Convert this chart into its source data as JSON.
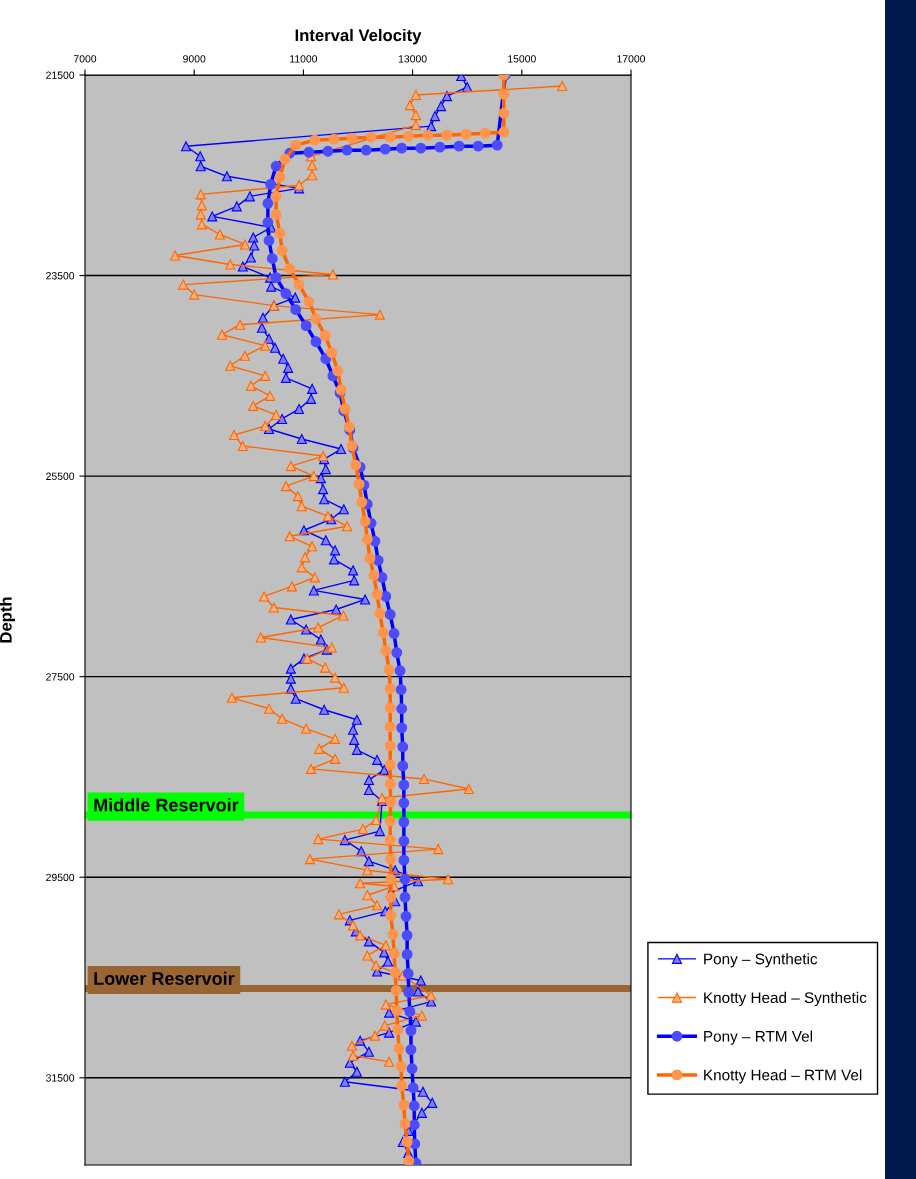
{
  "chart_data": {
    "type": "line",
    "xlabel": "Interval Velocity",
    "ylabel": "Depth",
    "xlim": [
      7000,
      17000
    ],
    "xticks": [
      7000,
      9000,
      11000,
      13000,
      15000,
      17000
    ],
    "ylim": [
      32370,
      21500
    ],
    "yticks": [
      21500,
      23500,
      25500,
      27500,
      29500,
      31500
    ],
    "grid": "y",
    "legend": "bottom right",
    "line_style": "solid",
    "ref_lines": [
      {
        "axis": "y",
        "value": 28880,
        "label": "Middle Reservoir",
        "color": "#00ff00"
      },
      {
        "axis": "y",
        "value": 30610,
        "label": "Lower Reservoir",
        "color": "#996633"
      }
    ],
    "series": [
      {
        "name": "Pony – Synthetic",
        "color": "#0000ff",
        "marker": "triangle",
        "x": [
          13890,
          14000,
          13630,
          13520,
          13410,
          13340,
          8850,
          9110,
          9120,
          9600,
          10920,
          10020,
          9780,
          9330,
          10410,
          10080,
          10100,
          10040,
          9890,
          10390,
          10410,
          10850,
          10460,
          10260,
          10240,
          10370,
          10480,
          10630,
          10720,
          10680,
          11160,
          11140,
          10920,
          10610,
          10370,
          10970,
          11690,
          11380,
          11410,
          11320,
          11360,
          11380,
          11740,
          11510,
          11010,
          11410,
          11580,
          11560,
          11910,
          11930,
          11190,
          12130,
          11600,
          10770,
          11050,
          11320,
          11430,
          11010,
          10770,
          10770,
          10770,
          10860,
          11380,
          11980,
          11910,
          11930,
          11980,
          12350,
          12480,
          12200,
          12200,
          12440,
          12400,
          11760,
          12060,
          12200,
          12680,
          13100,
          12600,
          12680,
          12500,
          11850,
          11960,
          12200,
          12480,
          12550,
          12350,
          13150,
          13100,
          13340,
          12570,
          13060,
          12570,
          12040,
          12200,
          11850,
          11980,
          11760,
          13190,
          13360,
          13170,
          12930,
          12820,
          12920
        ],
        "values": [
          21510,
          21620,
          21710,
          21810,
          21910,
          22010,
          22210,
          22310,
          22410,
          22510,
          22630,
          22710,
          22810,
          22910,
          23020,
          23120,
          23200,
          23320,
          23410,
          23520,
          23610,
          23720,
          23800,
          23920,
          24020,
          24130,
          24220,
          24330,
          24420,
          24520,
          24630,
          24730,
          24830,
          24930,
          25030,
          25130,
          25230,
          25330,
          25430,
          25520,
          25630,
          25730,
          25830,
          25930,
          26040,
          26140,
          26240,
          26330,
          26440,
          26540,
          26640,
          26730,
          26830,
          26930,
          27030,
          27130,
          27230,
          27320,
          27420,
          27520,
          27620,
          27720,
          27830,
          27930,
          28030,
          28130,
          28230,
          28330,
          28430,
          28530,
          28630,
          28740,
          29040,
          29130,
          29240,
          29340,
          29430,
          29540,
          29650,
          29740,
          29840,
          29930,
          30040,
          30140,
          30250,
          30340,
          30440,
          30530,
          30640,
          30740,
          30850,
          30940,
          31050,
          31130,
          31240,
          31350,
          31440,
          31540,
          31640,
          31750,
          31850,
          32030,
          32140,
          32250
        ]
      },
      {
        "name": "Knotty Head – Synthetic",
        "color": "#ff6600",
        "marker": "triangle",
        "x": [
          15740,
          13060,
          12950,
          13060,
          13060,
          11140,
          11160,
          11160,
          10920,
          9120,
          9140,
          9120,
          9140,
          9470,
          9930,
          8650,
          9660,
          11540,
          8800,
          9000,
          10460,
          12400,
          9840,
          9510,
          10300,
          9930,
          9660,
          10300,
          10040,
          10390,
          10080,
          10500,
          10300,
          9730,
          9890,
          11360,
          10770,
          11190,
          10680,
          10900,
          10970,
          11450,
          11800,
          10750,
          11160,
          11030,
          10970,
          11210,
          10790,
          10280,
          10460,
          11730,
          11270,
          10220,
          11520,
          11070,
          11400,
          11580,
          11740,
          9690,
          10370,
          10610,
          11050,
          11580,
          11290,
          11580,
          11140,
          13210,
          14030,
          12440,
          12330,
          12090,
          11270,
          13470,
          11120,
          12170,
          13650,
          12040,
          12660,
          12170,
          12350,
          11650,
          11910,
          12040,
          12510,
          12170,
          12330,
          12820,
          13340,
          12510,
          13170,
          12490,
          12310,
          11890,
          11910,
          12570
        ],
        "values": [
          21610,
          21700,
          21800,
          21900,
          22000,
          22310,
          22400,
          22500,
          22600,
          22690,
          22800,
          22890,
          22990,
          23090,
          23190,
          23300,
          23390,
          23490,
          23590,
          23690,
          23800,
          23890,
          23990,
          24090,
          24200,
          24300,
          24400,
          24500,
          24600,
          24700,
          24800,
          24890,
          25000,
          25090,
          25200,
          25300,
          25400,
          25500,
          25600,
          25700,
          25800,
          25900,
          26000,
          26100,
          26200,
          26310,
          26410,
          26510,
          26600,
          26700,
          26810,
          26890,
          27010,
          27110,
          27210,
          27320,
          27410,
          27510,
          27610,
          27710,
          27820,
          27920,
          28020,
          28120,
          28220,
          28320,
          28420,
          28520,
          28620,
          28710,
          28930,
          29020,
          29120,
          29220,
          29320,
          29430,
          29520,
          29560,
          29590,
          29680,
          29780,
          29870,
          29980,
          30080,
          30180,
          30280,
          30380,
          30480,
          30680,
          30770,
          30880,
          30980,
          31080,
          31180,
          31280,
          31340
        ]
      },
      {
        "name": "Pony – RTM Vel",
        "color": "#0000ff",
        "marker": "circle",
        "x": [
          14700,
          14550,
          14200,
          13850,
          13500,
          13150,
          12800,
          12500,
          12150,
          11800,
          11450,
          11100,
          10750,
          10500,
          10400,
          10350,
          10350,
          10370,
          10430,
          10500,
          10680,
          10860,
          11050,
          11230,
          11410,
          11540,
          11670,
          11740,
          11850,
          11910,
          12040,
          12110,
          12170,
          12240,
          12310,
          12370,
          12440,
          12510,
          12590,
          12660,
          12710,
          12770,
          12790,
          12800,
          12800,
          12820,
          12820,
          12840,
          12840,
          12840,
          12840,
          12840,
          12860,
          12860,
          12880,
          12900,
          12900,
          12920,
          12930,
          12950,
          12970,
          12970,
          12990,
          13010,
          13030,
          13030,
          13040,
          13060
        ],
        "values": [
          21500,
          22200,
          22210,
          22210,
          22220,
          22230,
          22230,
          22240,
          22250,
          22250,
          22260,
          22270,
          22280,
          22410,
          22590,
          22780,
          22970,
          23150,
          23330,
          23520,
          23680,
          23840,
          24000,
          24160,
          24330,
          24500,
          24670,
          24850,
          25040,
          25220,
          25410,
          25590,
          25780,
          25970,
          26150,
          26340,
          26510,
          26700,
          26880,
          27070,
          27260,
          27440,
          27630,
          27820,
          28010,
          28200,
          28390,
          28580,
          28760,
          28950,
          29140,
          29330,
          29520,
          29700,
          29890,
          30080,
          30270,
          30460,
          30650,
          30840,
          31030,
          31220,
          31410,
          31600,
          31780,
          31970,
          32160,
          32350
        ]
      },
      {
        "name": "Knotty Head – RTM Vel",
        "color": "#ff6600",
        "marker": "circle",
        "x": [
          14670,
          14670,
          14670,
          14670,
          14330,
          13980,
          13630,
          13280,
          12930,
          12590,
          12240,
          11890,
          11560,
          11210,
          10860,
          10660,
          10570,
          10500,
          10500,
          10570,
          10610,
          10750,
          10920,
          11100,
          11230,
          11400,
          11520,
          11630,
          11690,
          11760,
          11840,
          11890,
          11960,
          12020,
          12070,
          12130,
          12170,
          12220,
          12290,
          12350,
          12400,
          12460,
          12510,
          12570,
          12590,
          12590,
          12590,
          12590,
          12590,
          12590,
          12600,
          12590,
          12590,
          12600,
          12600,
          12600,
          12600,
          12640,
          12660,
          12680,
          12700,
          12710,
          12730,
          12750,
          12790,
          12800,
          12840,
          12860,
          12900,
          12930
        ],
        "values": [
          21500,
          21690,
          21880,
          22070,
          22080,
          22090,
          22100,
          22100,
          22110,
          22120,
          22120,
          22130,
          22140,
          22150,
          22200,
          22340,
          22520,
          22710,
          22890,
          23080,
          23250,
          23430,
          23590,
          23760,
          23930,
          24100,
          24270,
          24450,
          24640,
          24830,
          25010,
          25200,
          25390,
          25580,
          25760,
          25950,
          26130,
          26320,
          26490,
          26680,
          26870,
          27060,
          27240,
          27430,
          27620,
          27810,
          28000,
          28190,
          28380,
          28570,
          28750,
          28940,
          29130,
          29320,
          29520,
          29700,
          29880,
          30070,
          30260,
          30450,
          30630,
          30830,
          31020,
          31210,
          31390,
          31580,
          31770,
          31960,
          32140,
          32330
        ]
      }
    ]
  }
}
